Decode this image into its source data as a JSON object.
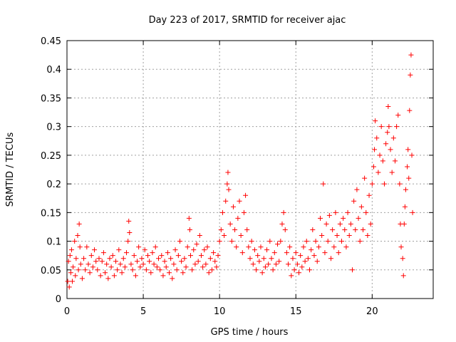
{
  "colors": {
    "series": "#ff0000",
    "axis": "#000000",
    "grid": "#a0a0a0"
  },
  "chart_data": {
    "type": "scatter",
    "title": "Day 223 of 2017, SRMTID for receiver ajac",
    "xlabel": "GPS time / hours",
    "ylabel": "SRMTID / TECUs",
    "xlim": [
      0,
      24
    ],
    "ylim": [
      0,
      0.45
    ],
    "xticks": [
      0,
      5,
      10,
      15,
      20
    ],
    "xtick_labels": [
      "0",
      "5",
      "10",
      "15",
      "20"
    ],
    "yticks": [
      0,
      0.05,
      0.1,
      0.15,
      0.2,
      0.25,
      0.3,
      0.35,
      0.4,
      0.45
    ],
    "ytick_labels": [
      "0",
      "0.05",
      "0.1",
      "0.15",
      "0.2",
      "0.25",
      "0.3",
      "0.35",
      "0.4",
      "0.45"
    ],
    "grid": true,
    "marker": "+",
    "series": [
      {
        "name": "SRMTID",
        "points": [
          [
            0.05,
            0.03
          ],
          [
            0.1,
            0.065
          ],
          [
            0.15,
            0.02
          ],
          [
            0.2,
            0.075
          ],
          [
            0.25,
            0.045
          ],
          [
            0.3,
            0.085
          ],
          [
            0.35,
            0.03
          ],
          [
            0.4,
            0.055
          ],
          [
            0.5,
            0.1
          ],
          [
            0.55,
            0.04
          ],
          [
            0.6,
            0.07
          ],
          [
            0.7,
            0.11
          ],
          [
            0.75,
            0.05
          ],
          [
            0.8,
            0.13
          ],
          [
            0.85,
            0.09
          ],
          [
            0.9,
            0.06
          ],
          [
            1.0,
            0.035
          ],
          [
            1.1,
            0.07
          ],
          [
            1.2,
            0.05
          ],
          [
            1.3,
            0.09
          ],
          [
            1.4,
            0.06
          ],
          [
            1.5,
            0.045
          ],
          [
            1.6,
            0.075
          ],
          [
            1.7,
            0.055
          ],
          [
            1.8,
            0.085
          ],
          [
            1.9,
            0.065
          ],
          [
            2.0,
            0.05
          ],
          [
            2.1,
            0.07
          ],
          [
            2.2,
            0.04
          ],
          [
            2.3,
            0.065
          ],
          [
            2.4,
            0.08
          ],
          [
            2.5,
            0.045
          ],
          [
            2.6,
            0.06
          ],
          [
            2.7,
            0.035
          ],
          [
            2.8,
            0.07
          ],
          [
            2.9,
            0.055
          ],
          [
            3.0,
            0.075
          ],
          [
            3.1,
            0.04
          ],
          [
            3.2,
            0.065
          ],
          [
            3.3,
            0.05
          ],
          [
            3.4,
            0.085
          ],
          [
            3.5,
            0.06
          ],
          [
            3.6,
            0.045
          ],
          [
            3.7,
            0.07
          ],
          [
            3.8,
            0.055
          ],
          [
            3.9,
            0.08
          ],
          [
            4.0,
            0.1
          ],
          [
            4.05,
            0.135
          ],
          [
            4.1,
            0.115
          ],
          [
            4.2,
            0.06
          ],
          [
            4.3,
            0.05
          ],
          [
            4.4,
            0.075
          ],
          [
            4.5,
            0.04
          ],
          [
            4.6,
            0.065
          ],
          [
            4.7,
            0.09
          ],
          [
            4.8,
            0.055
          ],
          [
            4.9,
            0.07
          ],
          [
            5.0,
            0.06
          ],
          [
            5.1,
            0.085
          ],
          [
            5.2,
            0.05
          ],
          [
            5.3,
            0.075
          ],
          [
            5.4,
            0.065
          ],
          [
            5.5,
            0.045
          ],
          [
            5.6,
            0.08
          ],
          [
            5.7,
            0.06
          ],
          [
            5.8,
            0.09
          ],
          [
            5.9,
            0.055
          ],
          [
            6.0,
            0.07
          ],
          [
            6.1,
            0.05
          ],
          [
            6.2,
            0.075
          ],
          [
            6.3,
            0.04
          ],
          [
            6.4,
            0.065
          ],
          [
            6.5,
            0.055
          ],
          [
            6.6,
            0.08
          ],
          [
            6.7,
            0.045
          ],
          [
            6.8,
            0.07
          ],
          [
            6.9,
            0.035
          ],
          [
            7.0,
            0.06
          ],
          [
            7.1,
            0.085
          ],
          [
            7.2,
            0.05
          ],
          [
            7.3,
            0.075
          ],
          [
            7.4,
            0.1
          ],
          [
            7.5,
            0.065
          ],
          [
            7.6,
            0.045
          ],
          [
            7.7,
            0.07
          ],
          [
            7.8,
            0.055
          ],
          [
            7.9,
            0.09
          ],
          [
            8.0,
            0.14
          ],
          [
            8.05,
            0.12
          ],
          [
            8.1,
            0.075
          ],
          [
            8.2,
            0.05
          ],
          [
            8.3,
            0.085
          ],
          [
            8.4,
            0.06
          ],
          [
            8.5,
            0.095
          ],
          [
            8.6,
            0.065
          ],
          [
            8.7,
            0.11
          ],
          [
            8.8,
            0.075
          ],
          [
            8.9,
            0.055
          ],
          [
            9.0,
            0.085
          ],
          [
            9.1,
            0.06
          ],
          [
            9.2,
            0.09
          ],
          [
            9.3,
            0.045
          ],
          [
            9.4,
            0.07
          ],
          [
            9.5,
            0.05
          ],
          [
            9.6,
            0.08
          ],
          [
            9.7,
            0.065
          ],
          [
            9.8,
            0.055
          ],
          [
            9.9,
            0.075
          ],
          [
            10.0,
            0.1
          ],
          [
            10.1,
            0.12
          ],
          [
            10.2,
            0.15
          ],
          [
            10.3,
            0.11
          ],
          [
            10.4,
            0.17
          ],
          [
            10.5,
            0.2
          ],
          [
            10.55,
            0.22
          ],
          [
            10.6,
            0.19
          ],
          [
            10.7,
            0.13
          ],
          [
            10.8,
            0.1
          ],
          [
            10.9,
            0.16
          ],
          [
            11.0,
            0.12
          ],
          [
            11.1,
            0.09
          ],
          [
            11.2,
            0.14
          ],
          [
            11.3,
            0.17
          ],
          [
            11.4,
            0.11
          ],
          [
            11.5,
            0.08
          ],
          [
            11.6,
            0.15
          ],
          [
            11.7,
            0.18
          ],
          [
            11.8,
            0.12
          ],
          [
            11.9,
            0.09
          ],
          [
            12.0,
            0.07
          ],
          [
            12.1,
            0.1
          ],
          [
            12.2,
            0.06
          ],
          [
            12.3,
            0.085
          ],
          [
            12.4,
            0.05
          ],
          [
            12.5,
            0.075
          ],
          [
            12.6,
            0.065
          ],
          [
            12.7,
            0.09
          ],
          [
            12.8,
            0.045
          ],
          [
            12.9,
            0.07
          ],
          [
            13.0,
            0.055
          ],
          [
            13.1,
            0.085
          ],
          [
            13.2,
            0.06
          ],
          [
            13.3,
            0.1
          ],
          [
            13.4,
            0.07
          ],
          [
            13.5,
            0.05
          ],
          [
            13.6,
            0.08
          ],
          [
            13.7,
            0.06
          ],
          [
            13.8,
            0.095
          ],
          [
            13.9,
            0.065
          ],
          [
            14.0,
            0.1
          ],
          [
            14.1,
            0.13
          ],
          [
            14.2,
            0.15
          ],
          [
            14.3,
            0.12
          ],
          [
            14.4,
            0.08
          ],
          [
            14.5,
            0.06
          ],
          [
            14.6,
            0.09
          ],
          [
            14.7,
            0.04
          ],
          [
            14.8,
            0.07
          ],
          [
            14.9,
            0.05
          ],
          [
            15.0,
            0.08
          ],
          [
            15.1,
            0.06
          ],
          [
            15.2,
            0.045
          ],
          [
            15.3,
            0.075
          ],
          [
            15.4,
            0.055
          ],
          [
            15.5,
            0.09
          ],
          [
            15.6,
            0.065
          ],
          [
            15.7,
            0.1
          ],
          [
            15.8,
            0.07
          ],
          [
            15.9,
            0.05
          ],
          [
            16.0,
            0.085
          ],
          [
            16.1,
            0.12
          ],
          [
            16.2,
            0.075
          ],
          [
            16.3,
            0.1
          ],
          [
            16.4,
            0.065
          ],
          [
            16.5,
            0.09
          ],
          [
            16.6,
            0.14
          ],
          [
            16.7,
            0.11
          ],
          [
            16.8,
            0.2
          ],
          [
            16.9,
            0.08
          ],
          [
            17.0,
            0.13
          ],
          [
            17.1,
            0.1
          ],
          [
            17.2,
            0.145
          ],
          [
            17.3,
            0.07
          ],
          [
            17.4,
            0.12
          ],
          [
            17.5,
            0.09
          ],
          [
            17.6,
            0.15
          ],
          [
            17.7,
            0.11
          ],
          [
            17.8,
            0.08
          ],
          [
            17.9,
            0.13
          ],
          [
            18.0,
            0.1
          ],
          [
            18.1,
            0.14
          ],
          [
            18.2,
            0.12
          ],
          [
            18.3,
            0.09
          ],
          [
            18.4,
            0.15
          ],
          [
            18.5,
            0.11
          ],
          [
            18.6,
            0.13
          ],
          [
            18.7,
            0.05
          ],
          [
            18.8,
            0.17
          ],
          [
            18.9,
            0.12
          ],
          [
            19.0,
            0.19
          ],
          [
            19.1,
            0.14
          ],
          [
            19.2,
            0.1
          ],
          [
            19.3,
            0.16
          ],
          [
            19.4,
            0.12
          ],
          [
            19.5,
            0.21
          ],
          [
            19.6,
            0.15
          ],
          [
            19.7,
            0.11
          ],
          [
            19.8,
            0.18
          ],
          [
            19.9,
            0.13
          ],
          [
            20.0,
            0.2
          ],
          [
            20.1,
            0.23
          ],
          [
            20.15,
            0.26
          ],
          [
            20.2,
            0.31
          ],
          [
            20.3,
            0.28
          ],
          [
            20.4,
            0.22
          ],
          [
            20.5,
            0.25
          ],
          [
            20.6,
            0.3
          ],
          [
            20.7,
            0.24
          ],
          [
            20.8,
            0.2
          ],
          [
            20.9,
            0.27
          ],
          [
            21.0,
            0.29
          ],
          [
            21.05,
            0.335
          ],
          [
            21.1,
            0.3
          ],
          [
            21.2,
            0.26
          ],
          [
            21.3,
            0.22
          ],
          [
            21.4,
            0.28
          ],
          [
            21.5,
            0.24
          ],
          [
            21.6,
            0.3
          ],
          [
            21.7,
            0.32
          ],
          [
            21.8,
            0.2
          ],
          [
            21.85,
            0.13
          ],
          [
            21.9,
            0.09
          ],
          [
            22.0,
            0.07
          ],
          [
            22.05,
            0.04
          ],
          [
            22.1,
            0.13
          ],
          [
            22.15,
            0.16
          ],
          [
            22.2,
            0.19
          ],
          [
            22.3,
            0.23
          ],
          [
            22.35,
            0.26
          ],
          [
            22.4,
            0.21
          ],
          [
            22.45,
            0.328
          ],
          [
            22.5,
            0.39
          ],
          [
            22.55,
            0.425
          ],
          [
            22.6,
            0.25
          ],
          [
            22.65,
            0.15
          ]
        ]
      }
    ]
  }
}
